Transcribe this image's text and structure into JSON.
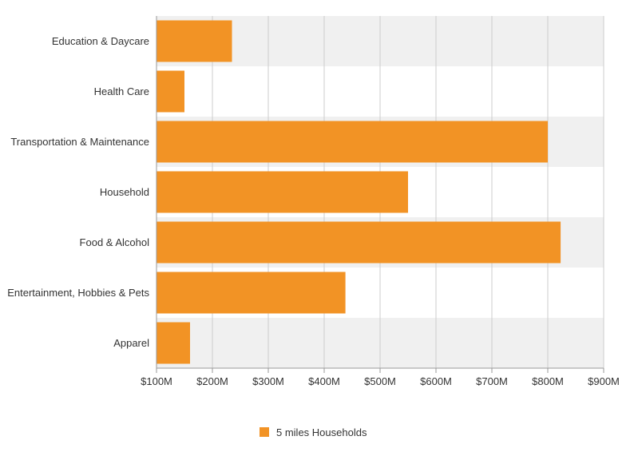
{
  "chart_data": {
    "type": "bar",
    "orientation": "horizontal",
    "categories": [
      "Education & Daycare",
      "Health Care",
      "Transportation & Maintenance",
      "Household",
      "Food & Alcohol",
      "Entertainment, Hobbies & Pets",
      "Apparel"
    ],
    "series": [
      {
        "name": "5 miles Households",
        "values": [
          235,
          150,
          800,
          550,
          823,
          438,
          160
        ],
        "color": "#f29325"
      }
    ],
    "unit": "M",
    "xlim": [
      100,
      900
    ],
    "xticks": [
      "$100M",
      "$200M",
      "$300M",
      "$400M",
      "$500M",
      "$600M",
      "$700M",
      "$800M",
      "$900M"
    ],
    "grid": true,
    "legend_position": "bottom",
    "band_colors": [
      "#f0f0f0",
      "#ffffff"
    ]
  },
  "legend": {
    "label": "5 miles Households"
  }
}
